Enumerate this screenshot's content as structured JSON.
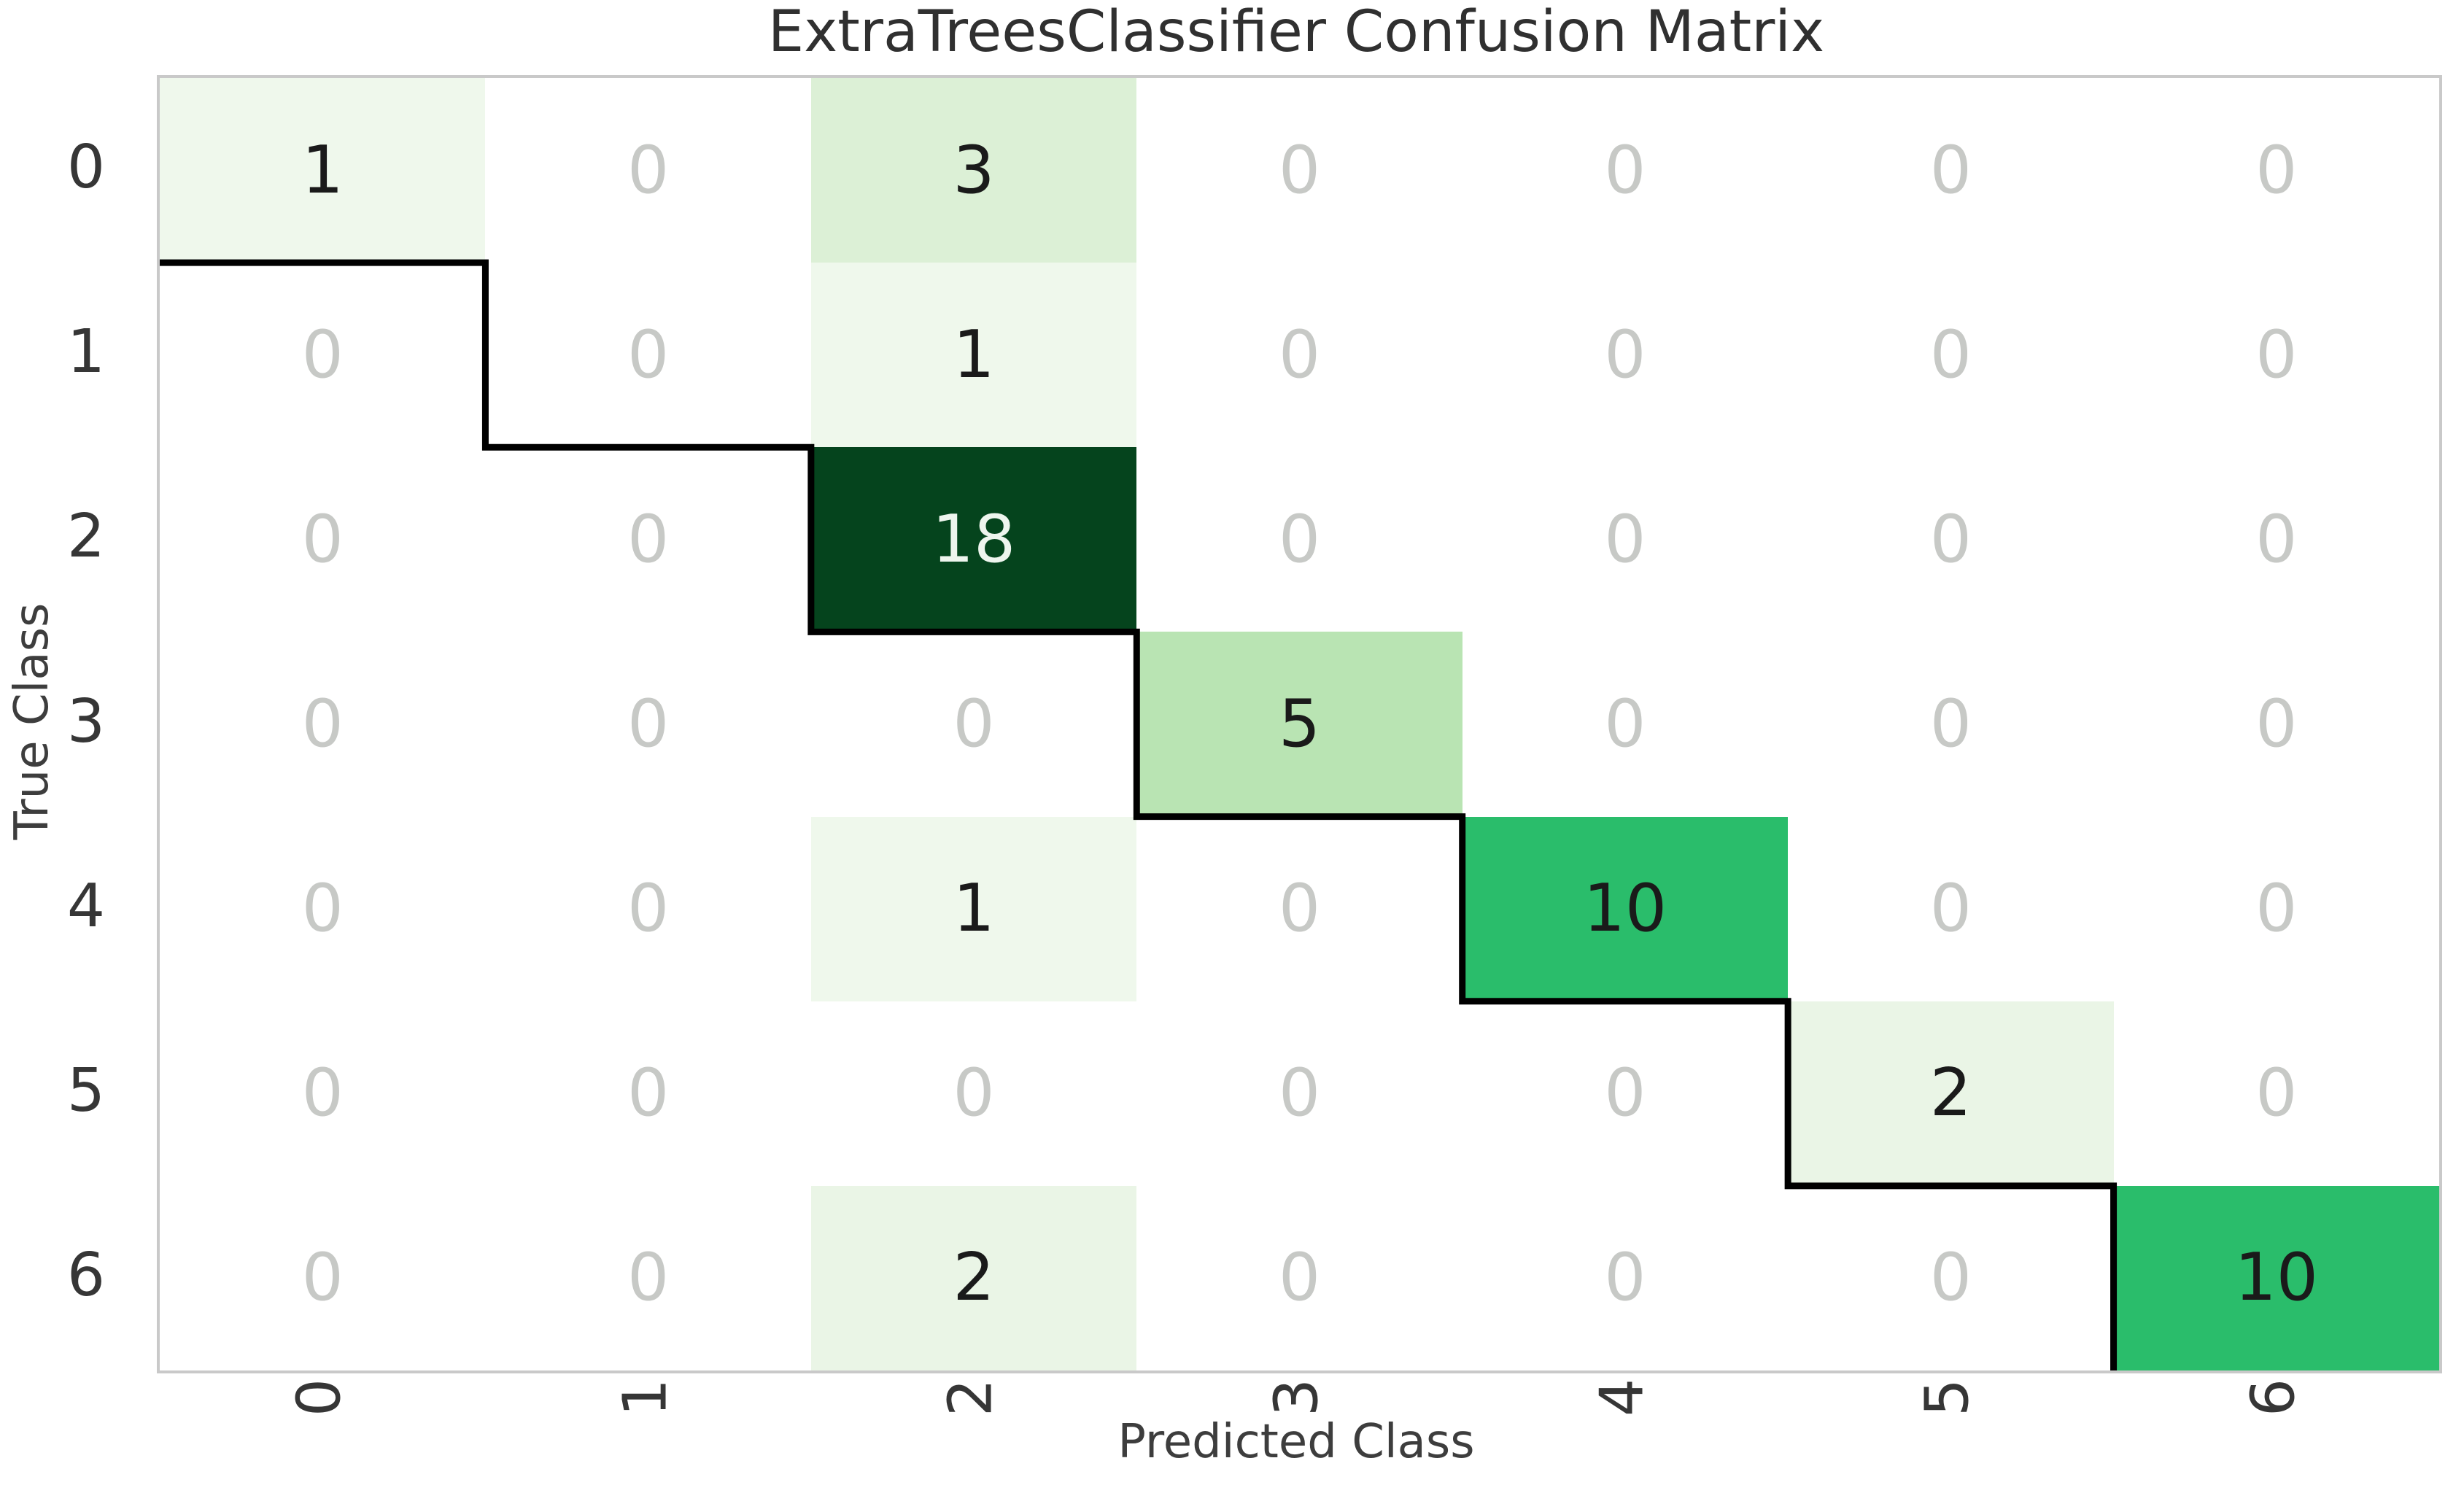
{
  "figure": {
    "title": "ExtraTreesClassifier Confusion Matrix",
    "xlabel": "Predicted Class",
    "ylabel": "True Class"
  },
  "chart_data": {
    "type": "heatmap",
    "subtype": "confusion-matrix",
    "title": "ExtraTreesClassifier Confusion Matrix",
    "xlabel": "Predicted Class",
    "ylabel": "True Class",
    "x_ticklabels": [
      "0",
      "1",
      "2",
      "3",
      "4",
      "5",
      "6"
    ],
    "y_ticklabels": [
      "0",
      "1",
      "2",
      "3",
      "4",
      "5",
      "6"
    ],
    "x_tick_rotation_deg": 90,
    "matrix": [
      [
        1,
        0,
        3,
        0,
        0,
        0,
        0
      ],
      [
        0,
        0,
        1,
        0,
        0,
        0,
        0
      ],
      [
        0,
        0,
        18,
        0,
        0,
        0,
        0
      ],
      [
        0,
        0,
        0,
        5,
        0,
        0,
        0
      ],
      [
        0,
        0,
        1,
        0,
        10,
        0,
        0
      ],
      [
        0,
        0,
        0,
        0,
        0,
        2,
        0
      ],
      [
        0,
        0,
        2,
        0,
        0,
        0,
        10
      ]
    ],
    "colormap": "Greens",
    "value_colors": {
      "0": "#ffffff",
      "1": "#eff8ec",
      "2": "#eaf5e6",
      "3": "#dcf0d6",
      "5": "#b9e4b3",
      "10": "#2abd6b",
      "18": "#05441d"
    },
    "cell_text_color": "#1a1a1a",
    "zero_text_color": "#c7c9c6",
    "dark_cell_text_color": "#eef5ee",
    "dark_text_threshold": 15,
    "diagonal_step_line_color": "#000000",
    "spine_color": "#c9c9c9",
    "grid": false,
    "legend": "none"
  }
}
